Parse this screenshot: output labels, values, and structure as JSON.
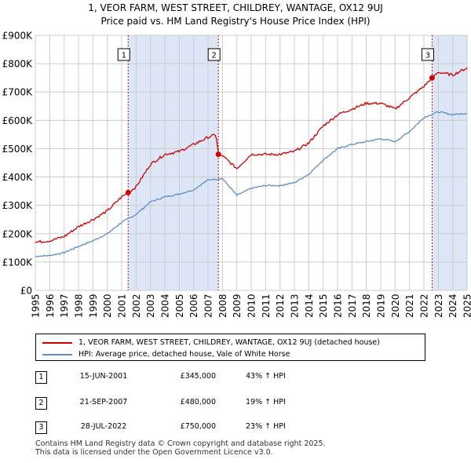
{
  "title_line1": "1, VEOR FARM, WEST STREET, CHILDREY, WANTAGE, OX12 9UJ",
  "title_line2": "Price paid vs. HM Land Registry's House Price Index (HPI)",
  "colors": {
    "property_line": "#cc0000",
    "hpi_line": "#5b8ec8",
    "shade": "#dce6f7",
    "marker_line": "#cc0000",
    "grid": "#cccccc"
  },
  "chart_data": {
    "type": "line",
    "x_ticks": [
      1995,
      1996,
      1997,
      1998,
      1999,
      2000,
      2001,
      2002,
      2003,
      2004,
      2005,
      2006,
      2007,
      2008,
      2009,
      2010,
      2011,
      2012,
      2013,
      2014,
      2015,
      2016,
      2017,
      2018,
      2019,
      2020,
      2021,
      2022,
      2023,
      2024,
      2025
    ],
    "y_ticks": [
      0,
      100000,
      200000,
      300000,
      400000,
      500000,
      600000,
      700000,
      800000,
      900000
    ],
    "y_tick_labels": [
      "£0",
      "£100K",
      "£200K",
      "£300K",
      "£400K",
      "£500K",
      "£600K",
      "£700K",
      "£800K",
      "£900K"
    ],
    "xlim": [
      1995,
      2025
    ],
    "ylim": [
      0,
      900000
    ],
    "grid": true,
    "series": [
      {
        "name": "1, VEOR FARM, WEST STREET, CHILDREY, WANTAGE, OX12 9UJ (detached house)",
        "x": [
          1995,
          1996,
          1997,
          1998,
          1999,
          2000,
          2001,
          2001.45,
          2002,
          2003,
          2004,
          2005,
          2006,
          2007,
          2007.55,
          2007.72,
          2008,
          2009,
          2010,
          2011,
          2012,
          2013,
          2014,
          2015,
          2016,
          2017,
          2018,
          2019,
          2020,
          2021,
          2022,
          2022.57,
          2023,
          2024,
          2025
        ],
        "values": [
          170000,
          175000,
          190000,
          225000,
          250000,
          280000,
          330000,
          345000,
          365000,
          445000,
          480000,
          490000,
          515000,
          540000,
          550000,
          480000,
          475000,
          430000,
          480000,
          480000,
          480000,
          490000,
          520000,
          580000,
          620000,
          640000,
          660000,
          660000,
          640000,
          680000,
          720000,
          750000,
          770000,
          760000,
          785000
        ]
      },
      {
        "name": "HPI: Average price, detached house, Vale of White Horse",
        "x": [
          1995,
          1996,
          1997,
          1998,
          1999,
          2000,
          2001,
          2002,
          2003,
          2004,
          2005,
          2006,
          2007,
          2008,
          2009,
          2010,
          2011,
          2012,
          2013,
          2014,
          2015,
          2016,
          2017,
          2018,
          2019,
          2020,
          2021,
          2022,
          2023,
          2024,
          2025
        ],
        "values": [
          120000,
          123000,
          133000,
          155000,
          175000,
          200000,
          240000,
          268000,
          312000,
          330000,
          340000,
          355000,
          390000,
          395000,
          335000,
          360000,
          370000,
          370000,
          380000,
          410000,
          460000,
          500000,
          515000,
          525000,
          535000,
          525000,
          560000,
          610000,
          630000,
          620000,
          625000
        ]
      }
    ],
    "sales": [
      {
        "label": "1",
        "x": 2001.45,
        "value": 345000
      },
      {
        "label": "2",
        "x": 2007.72,
        "value": 480000
      },
      {
        "label": "3",
        "x": 2022.57,
        "value": 750000
      }
    ],
    "shaded_ranges": [
      [
        2001.45,
        2007.72
      ],
      [
        2022.57,
        2025
      ]
    ]
  },
  "legend": {
    "property": "1, VEOR FARM, WEST STREET, CHILDREY, WANTAGE, OX12 9UJ (detached house)",
    "hpi": "HPI: Average price, detached house, Vale of White Horse"
  },
  "sales_table": [
    {
      "num": "1",
      "date": "15-JUN-2001",
      "price": "£345,000",
      "hpi": "43% ↑ HPI"
    },
    {
      "num": "2",
      "date": "21-SEP-2007",
      "price": "£480,000",
      "hpi": "19% ↑ HPI"
    },
    {
      "num": "3",
      "date": "28-JUL-2022",
      "price": "£750,000",
      "hpi": "23% ↑ HPI"
    }
  ],
  "footer_line1": "Contains HM Land Registry data © Crown copyright and database right 2025.",
  "footer_line2": "This data is licensed under the Open Government Licence v3.0."
}
